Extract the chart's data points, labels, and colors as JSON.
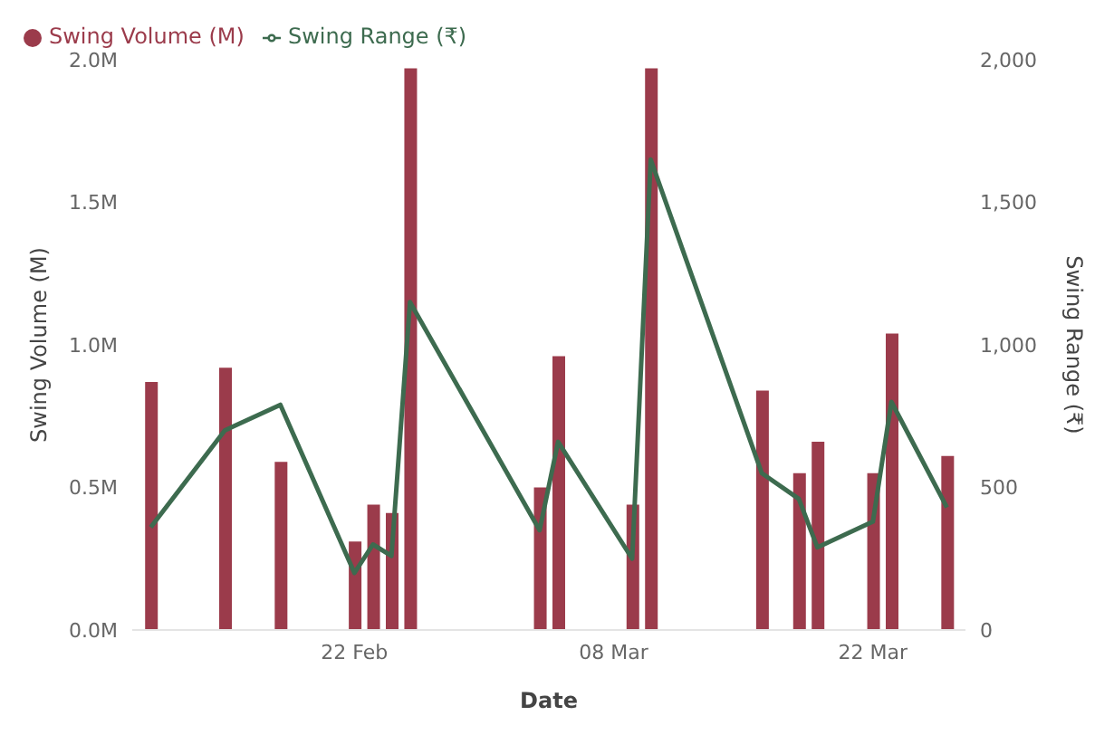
{
  "chart_data": {
    "type": "bar",
    "xlabel": "Date",
    "ylabel": "Swing Volume (M)",
    "y2label": "Swing Range (₹)",
    "x": [
      "--02-11",
      "--02-15",
      "--02-18",
      "--02-22",
      "--02-23",
      "--02-24",
      "--02-25",
      "--03-04",
      "--03-05",
      "--03-09",
      "--03-10",
      "--03-16",
      "--03-18",
      "--03-19",
      "--03-22",
      "--03-23",
      "--03-26"
    ],
    "series": [
      {
        "name": "Swing Volume (M)",
        "color": "#9b3b4b",
        "values": [
          0.87,
          0.92,
          0.59,
          0.31,
          0.44,
          0.41,
          1.97,
          0.5,
          0.96,
          0.44,
          1.97,
          0.84,
          0.55,
          0.66,
          0.55,
          1.04,
          0.61
        ]
      },
      {
        "name": "Swing Range (₹)",
        "type": "line",
        "axis": "y2",
        "color": "#3d6b4f",
        "values": [
          360,
          700,
          790,
          200,
          300,
          260,
          1150,
          350,
          660,
          250,
          1650,
          550,
          460,
          290,
          380,
          800,
          430
        ]
      }
    ],
    "xlim": [
      "--02-10",
      "--03-27"
    ],
    "xticks": [
      {
        "value": "--02-22",
        "label": "22 Feb"
      },
      {
        "value": "--03-08",
        "label": "08 Mar"
      },
      {
        "value": "--03-22",
        "label": "22 Mar"
      }
    ],
    "ylim": [
      0,
      2
    ],
    "yticks": [
      {
        "value": 0,
        "label": "0.0M"
      },
      {
        "value": 0.5,
        "label": "0.5M"
      },
      {
        "value": 1,
        "label": "1.0M"
      },
      {
        "value": 1.5,
        "label": "1.5M"
      },
      {
        "value": 2,
        "label": "2.0M"
      }
    ],
    "y2lim": [
      0,
      2000
    ],
    "y2ticks": [
      {
        "value": 0,
        "label": "0"
      },
      {
        "value": 500,
        "label": "500"
      },
      {
        "value": 1000,
        "label": "1,000"
      },
      {
        "value": 1500,
        "label": "1,500"
      },
      {
        "value": 2000,
        "label": "2,000"
      }
    ],
    "legend": "top left",
    "marker": "none",
    "line_style": "solid"
  }
}
